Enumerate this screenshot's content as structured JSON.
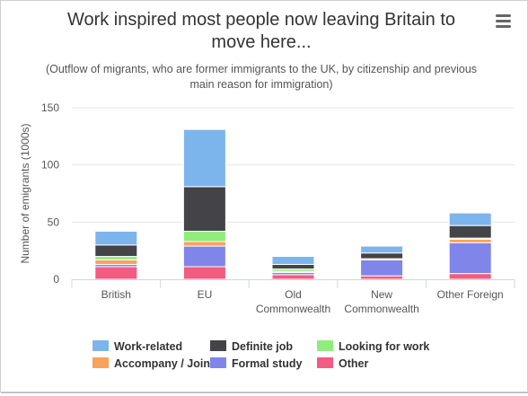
{
  "menu_icon": "hamburger-menu-icon",
  "chart_data": {
    "type": "bar",
    "stacked": true,
    "title": "Work inspired most people now leaving Britain to move here...",
    "subtitle": "(Outflow of migrants, who are former immigrants to the UK, by citizenship and previous main reason for immigration)",
    "ylabel": "Number of emigrants (1000s)",
    "xlabel": "",
    "ylim": [
      0,
      150
    ],
    "yticks": [
      0,
      50,
      100,
      150
    ],
    "grid": true,
    "legend_position": "bottom",
    "categories": [
      {
        "label": "British",
        "lines": [
          "British"
        ]
      },
      {
        "label": "EU",
        "lines": [
          "EU"
        ]
      },
      {
        "label": "Old Commonwealth",
        "lines": [
          "Old",
          "Commonwealth"
        ]
      },
      {
        "label": "New Commonwealth",
        "lines": [
          "New",
          "Commonwealth"
        ]
      },
      {
        "label": "Other Foreign",
        "lines": [
          "Other Foreign"
        ]
      }
    ],
    "series": [
      {
        "name": "Other",
        "color": "#f15c80",
        "values": [
          11,
          11,
          4,
          3,
          5
        ]
      },
      {
        "name": "Formal study",
        "color": "#8085e9",
        "values": [
          2,
          18,
          2,
          14,
          27
        ]
      },
      {
        "name": "Accompany / Join",
        "color": "#f7a35c",
        "values": [
          4,
          4,
          1,
          1,
          3
        ]
      },
      {
        "name": "Looking for work",
        "color": "#90ed7d",
        "values": [
          3,
          9,
          2,
          0,
          1
        ]
      },
      {
        "name": "Definite job",
        "color": "#434348",
        "values": [
          10,
          39,
          4,
          5,
          11
        ]
      },
      {
        "name": "Work-related",
        "color": "#7cb5ec",
        "values": [
          12,
          50,
          7,
          6,
          11
        ]
      }
    ],
    "legend_order": [
      "Work-related",
      "Definite job",
      "Looking for work",
      "Accompany / Join",
      "Formal study",
      "Other"
    ]
  }
}
